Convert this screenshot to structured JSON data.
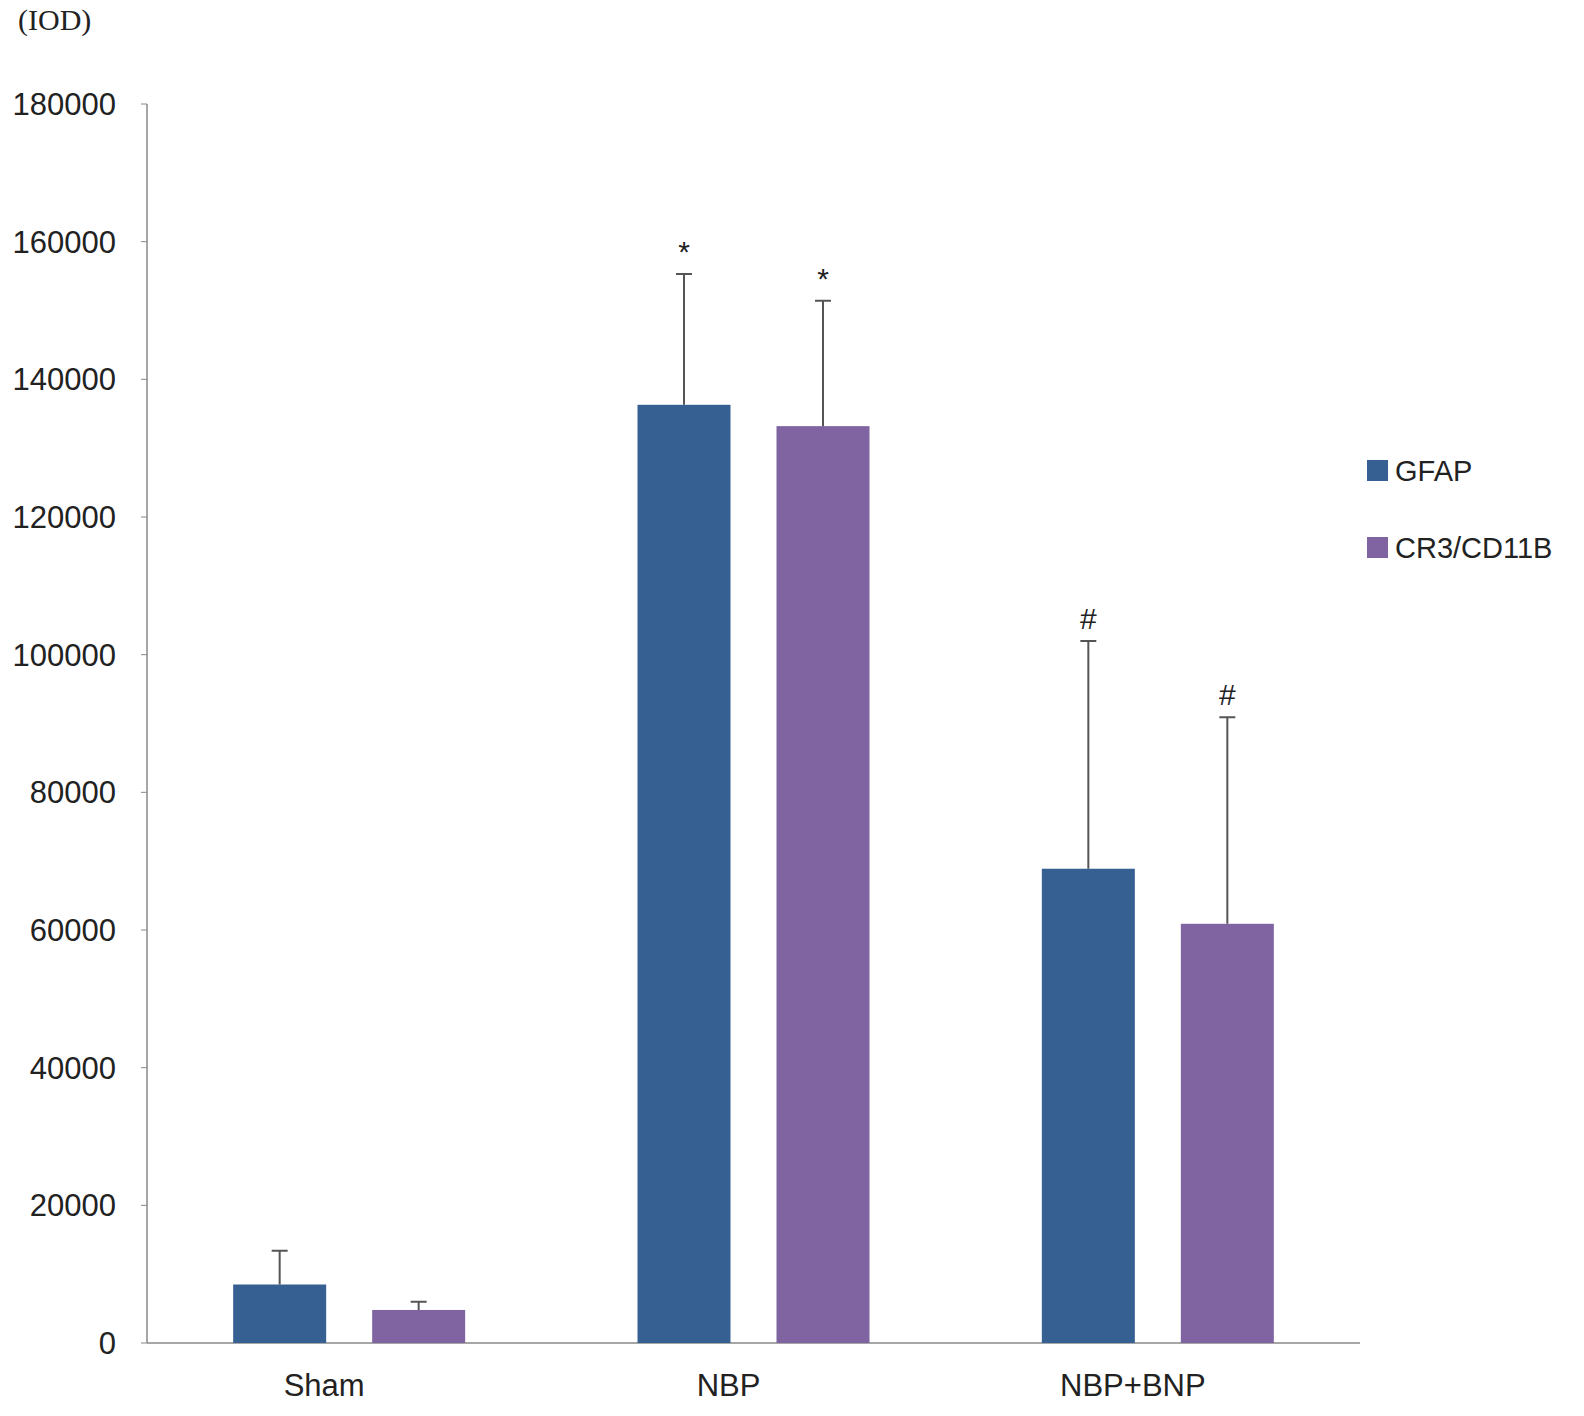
{
  "chart_data": {
    "type": "bar",
    "y_label": "(IOD)",
    "categories": [
      "Sham",
      "NBP",
      "NBP+BNP"
    ],
    "series": [
      {
        "name": "GFAP",
        "color": "#376092",
        "values": [
          8500,
          136300,
          68900
        ],
        "errors": [
          4900,
          19000,
          33100
        ],
        "annotations": [
          null,
          "*",
          "#"
        ]
      },
      {
        "name": "CR3/CD11B",
        "color": "#8064a2",
        "values": [
          4800,
          133200,
          60900
        ],
        "errors": [
          1200,
          18200,
          30000
        ],
        "annotations": [
          null,
          "*",
          "#"
        ]
      }
    ],
    "ylim": [
      0,
      180000
    ],
    "yticks": [
      0,
      20000,
      40000,
      60000,
      80000,
      100000,
      120000,
      140000,
      160000,
      180000
    ],
    "grid": false,
    "legend": "right"
  }
}
